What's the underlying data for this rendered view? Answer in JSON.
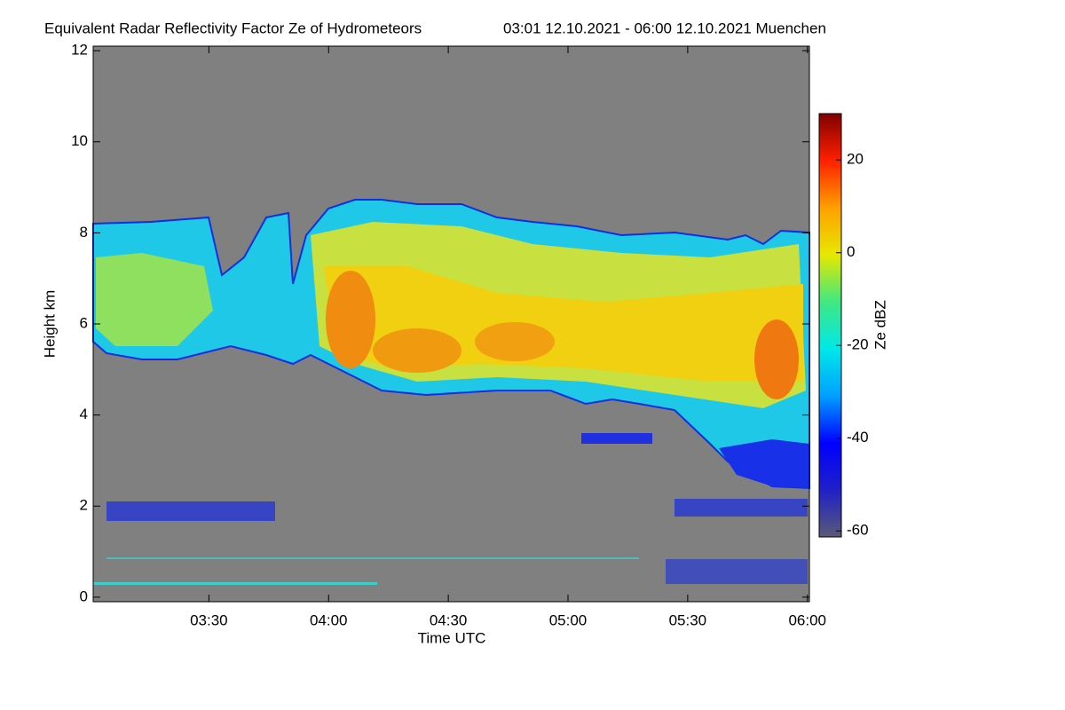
{
  "chart_data": {
    "type": "heatmap",
    "title": "Equivalent Radar Reflectivity Factor Ze of Hydrometeors",
    "subtitle": "03:01 12.10.2021 - 06:00 12.10.2021 Muenchen",
    "x_label": "Time UTC",
    "y_label": "Height km",
    "xlim": [
      181,
      360.5
    ],
    "xticks": [
      {
        "value": 210,
        "label": "03:30"
      },
      {
        "value": 240,
        "label": "04:00"
      },
      {
        "value": 270,
        "label": "04:30"
      },
      {
        "value": 300,
        "label": "05:00"
      },
      {
        "value": 330,
        "label": "05:30"
      },
      {
        "value": 360,
        "label": "06:00"
      }
    ],
    "ylim": [
      -0.1,
      12.1
    ],
    "yticks": [
      0,
      2,
      4,
      6,
      8,
      10,
      12
    ],
    "colorbar": {
      "label": "Ze dBZ",
      "lim": [
        -61.3,
        30
      ],
      "ticks": [
        -60,
        -40,
        -20,
        0,
        20
      ],
      "colormap": [
        "#5a5a78",
        "#2020c8",
        "#0000ff",
        "#00a0ff",
        "#00e8e8",
        "#40e880",
        "#e8e800",
        "#ffa000",
        "#ff2000",
        "#800000"
      ]
    },
    "background": "#808080"
  }
}
